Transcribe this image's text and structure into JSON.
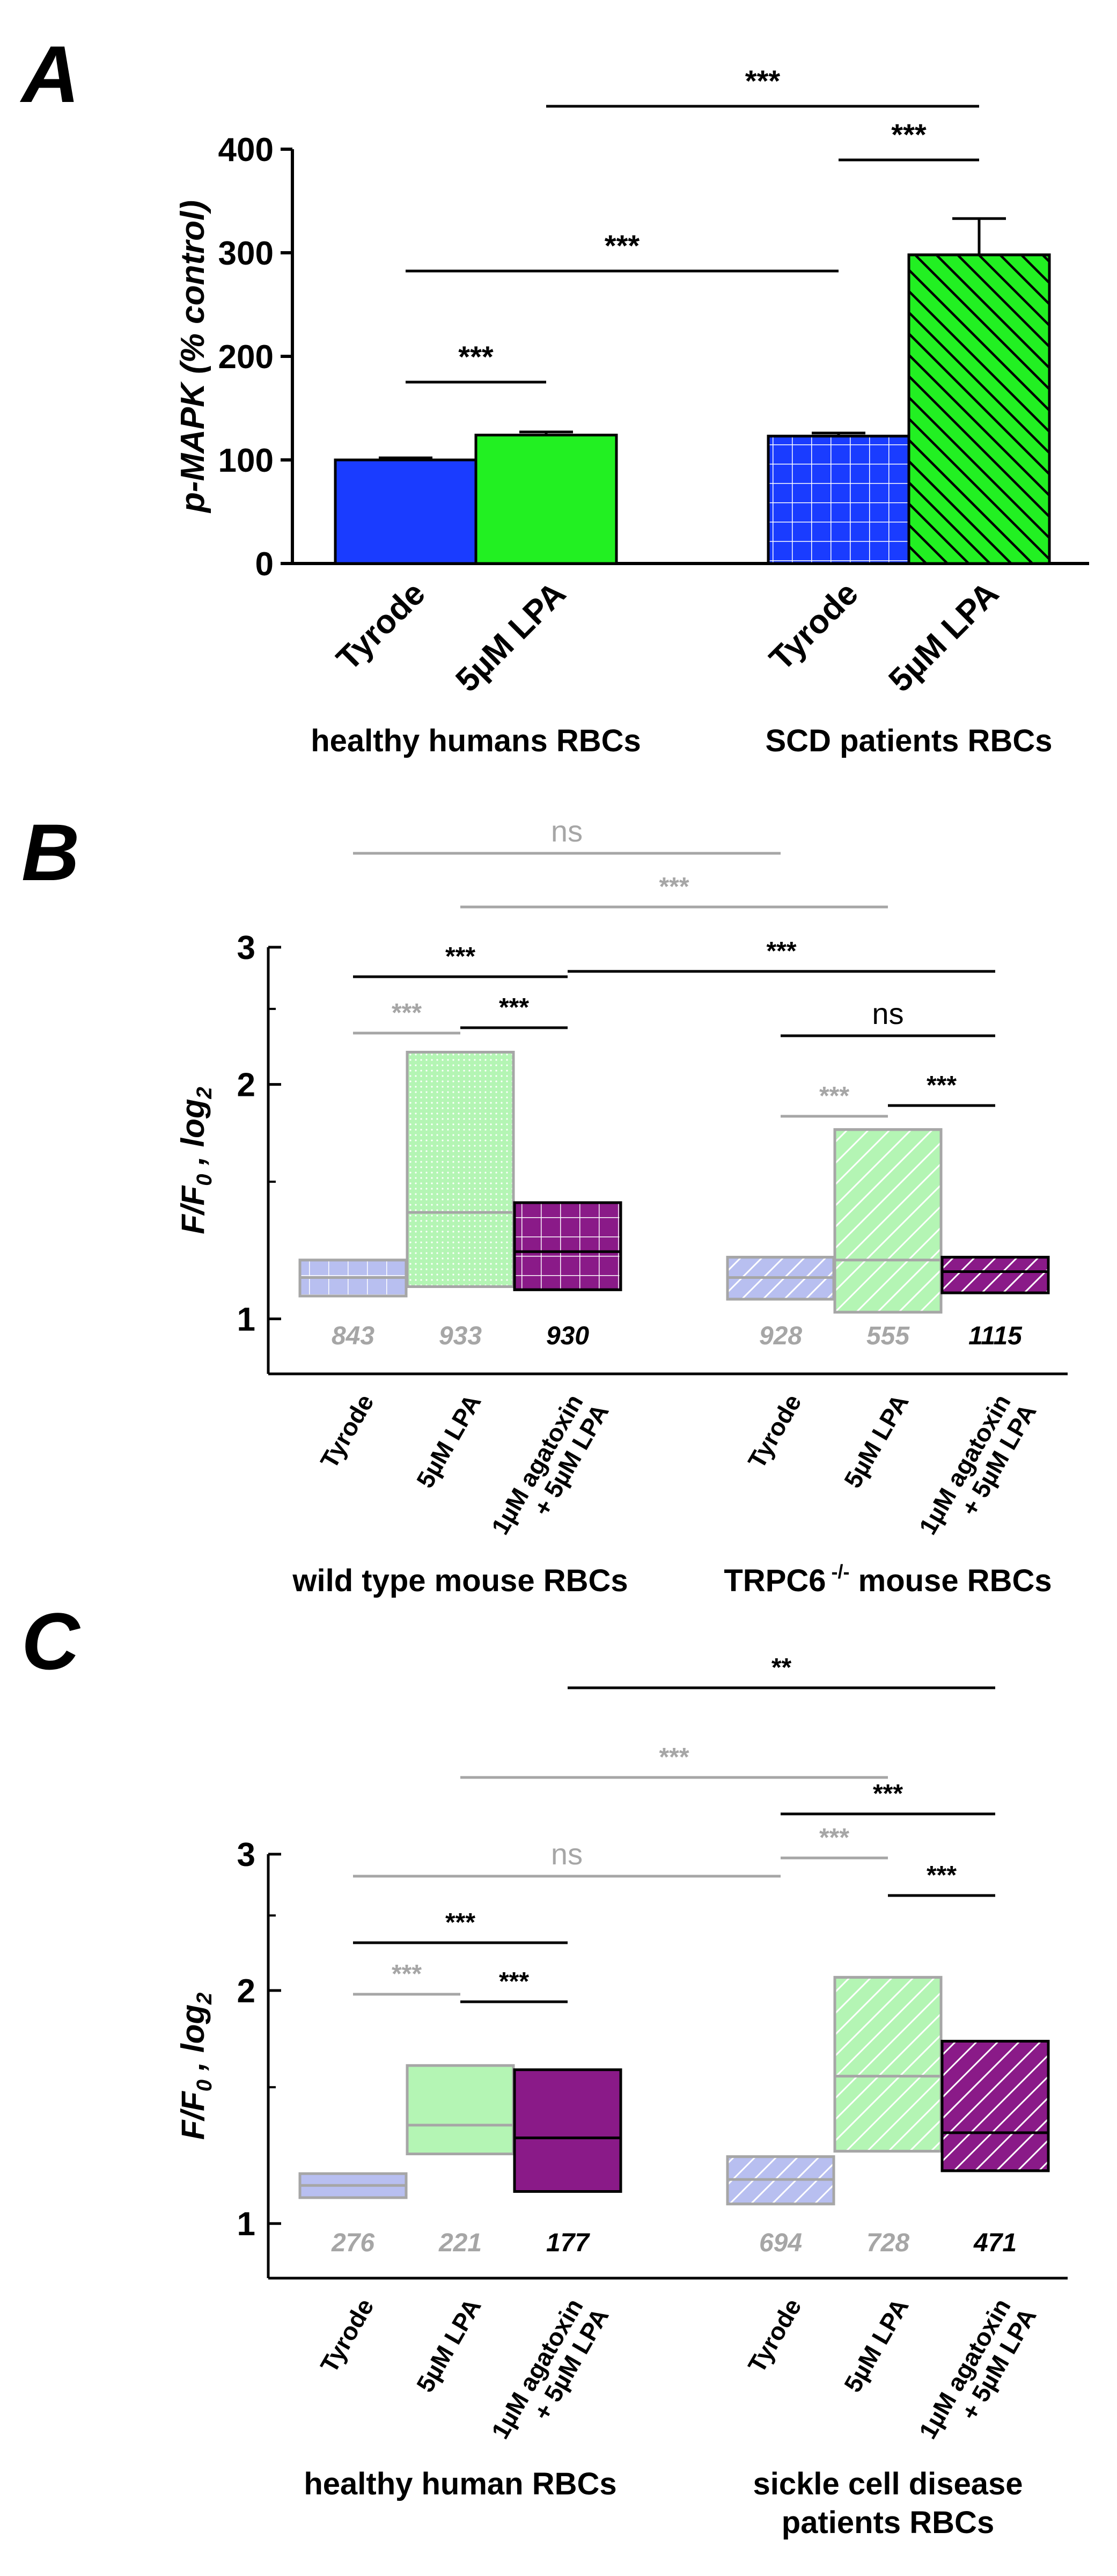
{
  "colors": {
    "blue": "#1a3cff",
    "green": "#22f022",
    "lightblue": "#b8bff0",
    "lightgreen": "#b4f5b4",
    "purple": "#8a1a88",
    "gray": "#a6a6a6",
    "black": "#000000"
  },
  "chart_data": [
    {
      "panel": "A",
      "type": "bar",
      "ylabel": "p-MAPK (% control)",
      "ylim": [
        0,
        400
      ],
      "yticks": [
        0,
        100,
        200,
        300,
        400
      ],
      "groups": [
        {
          "label": "healthy humans RBCs",
          "categories": [
            "Tyrode",
            "5µM LPA"
          ],
          "values": [
            100,
            124
          ],
          "errors": [
            2,
            3
          ],
          "colors": [
            "blue",
            "green"
          ],
          "hatched": false
        },
        {
          "label": "SCD patients RBCs",
          "categories": [
            "Tyrode",
            "5µM LPA"
          ],
          "values": [
            123,
            298
          ],
          "errors": [
            3,
            35
          ],
          "colors": [
            "blue",
            "green"
          ],
          "hatched": true
        }
      ],
      "significance": [
        {
          "label": "***",
          "from": "healthy humans RBCs/Tyrode",
          "to": "healthy humans RBCs/5µM LPA",
          "color": "black"
        },
        {
          "label": "***",
          "from": "healthy humans RBCs/Tyrode",
          "to": "SCD patients RBCs/Tyrode",
          "color": "black"
        },
        {
          "label": "***",
          "from": "SCD patients RBCs/Tyrode",
          "to": "SCD patients RBCs/5µM LPA",
          "color": "black"
        },
        {
          "label": "***",
          "from": "healthy humans RBCs/5µM LPA",
          "to": "SCD patients RBCs/5µM LPA",
          "color": "black"
        }
      ]
    },
    {
      "panel": "B",
      "type": "box",
      "ylabel": "F/F0 , log2",
      "yscale": "log2",
      "ylim": [
        0.85,
        3
      ],
      "yticks": [
        1,
        2,
        3
      ],
      "groups": [
        {
          "label": "wild type mouse RBCs",
          "superscript": "",
          "boxes": [
            {
              "category": "Tyrode",
              "q1": 1.07,
              "median": 1.13,
              "q3": 1.19,
              "n": "843",
              "color": "lightblue",
              "bold_n": false
            },
            {
              "category": "5µM LPA",
              "q1": 1.1,
              "median": 1.37,
              "q3": 2.2,
              "n": "933",
              "color": "lightgreen",
              "bold_n": false
            },
            {
              "category": "1µM agatoxin + 5µM LPA",
              "q1": 1.09,
              "median": 1.22,
              "q3": 1.41,
              "n": "930",
              "color": "purple",
              "bold_n": true
            }
          ]
        },
        {
          "label": "TRPC6 mouse RBCs",
          "superscript": "-/-",
          "boxes": [
            {
              "category": "Tyrode",
              "q1": 1.06,
              "median": 1.13,
              "q3": 1.2,
              "n": "928",
              "color": "lightblue",
              "bold_n": false
            },
            {
              "category": "5µM LPA",
              "q1": 1.02,
              "median": 1.19,
              "q3": 1.75,
              "n": "555",
              "color": "lightgreen",
              "bold_n": false
            },
            {
              "category": "1µM agatoxin + 5µM LPA",
              "q1": 1.08,
              "median": 1.15,
              "q3": 1.2,
              "n": "1115",
              "color": "purple",
              "bold_n": true
            }
          ]
        }
      ],
      "significance": [
        {
          "label": "ns",
          "from": "wild type/Tyrode",
          "to": "TRPC6/Tyrode",
          "color": "gray"
        },
        {
          "label": "***",
          "from": "wild type/5µM LPA",
          "to": "TRPC6/5µM LPA",
          "color": "gray"
        },
        {
          "label": "***",
          "from": "wild type/Tyrode",
          "to": "wild type/1µM agatoxin + 5µM LPA",
          "color": "black"
        },
        {
          "label": "***",
          "from": "wild type/1µM agatoxin + 5µM LPA",
          "to": "TRPC6/1µM agatoxin + 5µM LPA",
          "color": "black"
        },
        {
          "label": "***",
          "from": "wild type/Tyrode",
          "to": "wild type/5µM LPA",
          "color": "gray"
        },
        {
          "label": "***",
          "from": "wild type/5µM LPA",
          "to": "wild type/1µM agatoxin + 5µM LPA",
          "color": "black"
        },
        {
          "label": "ns",
          "from": "TRPC6/Tyrode",
          "to": "TRPC6/1µM agatoxin + 5µM LPA",
          "color": "black"
        },
        {
          "label": "***",
          "from": "TRPC6/Tyrode",
          "to": "TRPC6/5µM LPA",
          "color": "gray"
        },
        {
          "label": "***",
          "from": "TRPC6/5µM LPA",
          "to": "TRPC6/1µM agatoxin + 5µM LPA",
          "color": "black"
        }
      ]
    },
    {
      "panel": "C",
      "type": "box",
      "ylabel": "F/F0 , log2",
      "yscale": "log2",
      "ylim": [
        0.85,
        3
      ],
      "yticks": [
        1,
        2,
        3
      ],
      "groups": [
        {
          "label": "healthy human RBCs",
          "label2": "",
          "boxes": [
            {
              "category": "Tyrode",
              "q1": 1.08,
              "median": 1.12,
              "q3": 1.16,
              "n": "276",
              "color": "lightblue",
              "bold_n": false
            },
            {
              "category": "5µM LPA",
              "q1": 1.23,
              "median": 1.34,
              "q3": 1.6,
              "n": "221",
              "color": "lightgreen",
              "bold_n": false
            },
            {
              "category": "1µM agatoxin + 5µM LPA",
              "q1": 1.1,
              "median": 1.29,
              "q3": 1.58,
              "n": "177",
              "color": "purple",
              "bold_n": true
            }
          ]
        },
        {
          "label": "sickle cell disease",
          "label2": "patients RBCs",
          "boxes": [
            {
              "category": "Tyrode",
              "q1": 1.06,
              "median": 1.14,
              "q3": 1.22,
              "n": "694",
              "color": "lightblue",
              "bold_n": false
            },
            {
              "category": "5µM LPA",
              "q1": 1.24,
              "median": 1.55,
              "q3": 2.08,
              "n": "728",
              "color": "lightgreen",
              "bold_n": false
            },
            {
              "category": "1µM agatoxin + 5µM LPA",
              "q1": 1.17,
              "median": 1.31,
              "q3": 1.72,
              "n": "471",
              "color": "purple",
              "bold_n": true
            }
          ]
        }
      ],
      "significance": [
        {
          "label": "**",
          "from": "healthy/1µM agatoxin + 5µM LPA",
          "to": "SCD/1µM agatoxin + 5µM LPA",
          "color": "black"
        },
        {
          "label": "***",
          "from": "healthy/5µM LPA",
          "to": "SCD/5µM LPA",
          "color": "gray"
        },
        {
          "label": "***",
          "from": "SCD/Tyrode",
          "to": "SCD/1µM agatoxin + 5µM LPA",
          "color": "black"
        },
        {
          "label": "ns",
          "from": "healthy/Tyrode",
          "to": "SCD/Tyrode",
          "color": "gray"
        },
        {
          "label": "***",
          "from": "SCD/Tyrode",
          "to": "SCD/5µM LPA",
          "color": "gray"
        },
        {
          "label": "***",
          "from": "SCD/5µM LPA",
          "to": "SCD/1µM agatoxin + 5µM LPA",
          "color": "black"
        },
        {
          "label": "***",
          "from": "healthy/Tyrode",
          "to": "healthy/1µM agatoxin + 5µM LPA",
          "color": "black"
        },
        {
          "label": "***",
          "from": "healthy/Tyrode",
          "to": "healthy/5µM LPA",
          "color": "gray"
        },
        {
          "label": "***",
          "from": "healthy/5µM LPA",
          "to": "healthy/1µM agatoxin + 5µM LPA",
          "color": "black"
        }
      ]
    }
  ]
}
